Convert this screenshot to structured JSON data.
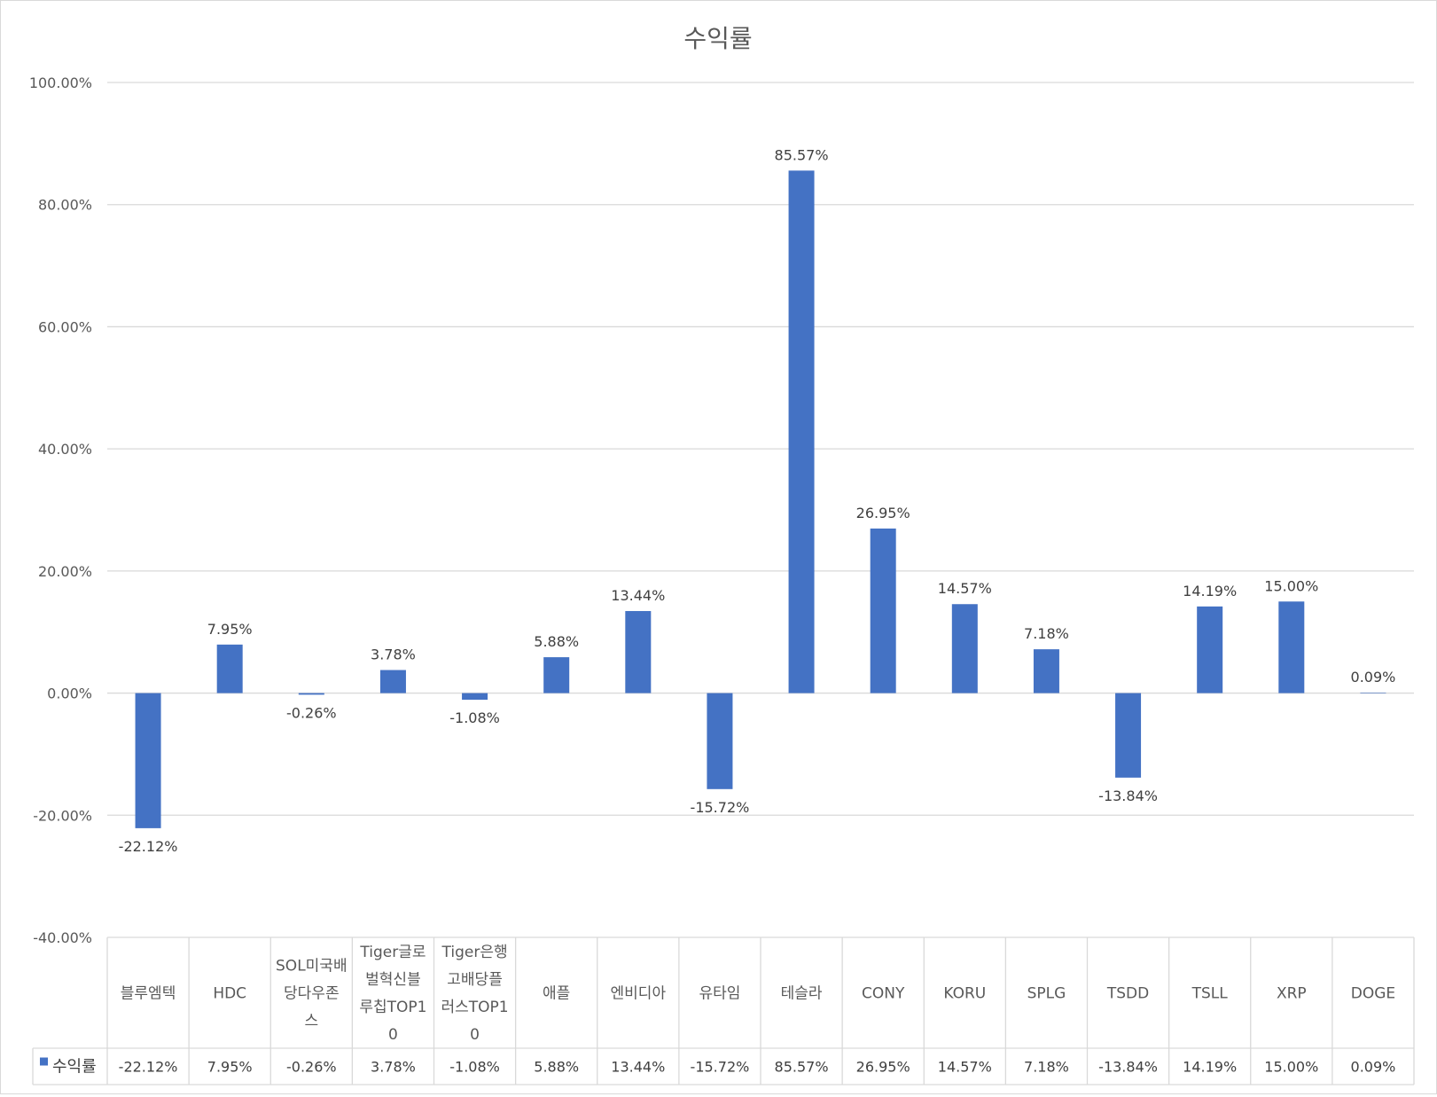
{
  "chart_data": {
    "type": "bar",
    "title": "수익률",
    "xlabel": "",
    "ylabel": "",
    "ylim": [
      -0.4,
      1.0
    ],
    "ytick_values": [
      -0.4,
      -0.2,
      0,
      0.2,
      0.4,
      0.6,
      0.8,
      1.0
    ],
    "ytick_labels": [
      "-40.00%",
      "-20.00%",
      "0.00%",
      "20.00%",
      "40.00%",
      "60.00%",
      "80.00%",
      "100.00%"
    ],
    "grid": true,
    "legend": "data-table",
    "categories": [
      "블루엠텍",
      "HDC",
      "SOL미국배당다우존스",
      "Tiger글로벌혁신블루칩TOP10",
      "Tiger은행고배당플러스TOP10",
      "애플",
      "엔비디아",
      "유타임",
      "테슬라",
      "CONY",
      "KORU",
      "SPLG",
      "TSDD",
      "TSLL",
      "XRP",
      "DOGE"
    ],
    "category_lines": [
      [
        "블루엠텍"
      ],
      [
        "HDC"
      ],
      [
        "SOL미국배",
        "당다우존",
        "스"
      ],
      [
        "Tiger글로",
        "벌혁신블",
        "루칩TOP1",
        "0"
      ],
      [
        "Tiger은행",
        "고배당플",
        "러스TOP1",
        "0"
      ],
      [
        "애플"
      ],
      [
        "엔비디아"
      ],
      [
        "유타임"
      ],
      [
        "테슬라"
      ],
      [
        "CONY"
      ],
      [
        "KORU"
      ],
      [
        "SPLG"
      ],
      [
        "TSDD"
      ],
      [
        "TSLL"
      ],
      [
        "XRP"
      ],
      [
        "DOGE"
      ]
    ],
    "series": [
      {
        "name": "수익률",
        "color": "#4472c4",
        "values": [
          -0.2212,
          0.0795,
          -0.0026,
          0.0378,
          -0.0108,
          0.0588,
          0.1344,
          -0.1572,
          0.8557,
          0.2695,
          0.1457,
          0.0718,
          -0.1384,
          0.1419,
          0.15,
          0.0009
        ],
        "labels": [
          "-22.12%",
          "7.95%",
          "-0.26%",
          "3.78%",
          "-1.08%",
          "5.88%",
          "13.44%",
          "-15.72%",
          "85.57%",
          "26.95%",
          "14.57%",
          "7.18%",
          "-13.84%",
          "14.19%",
          "15.00%",
          "0.09%"
        ]
      }
    ]
  }
}
